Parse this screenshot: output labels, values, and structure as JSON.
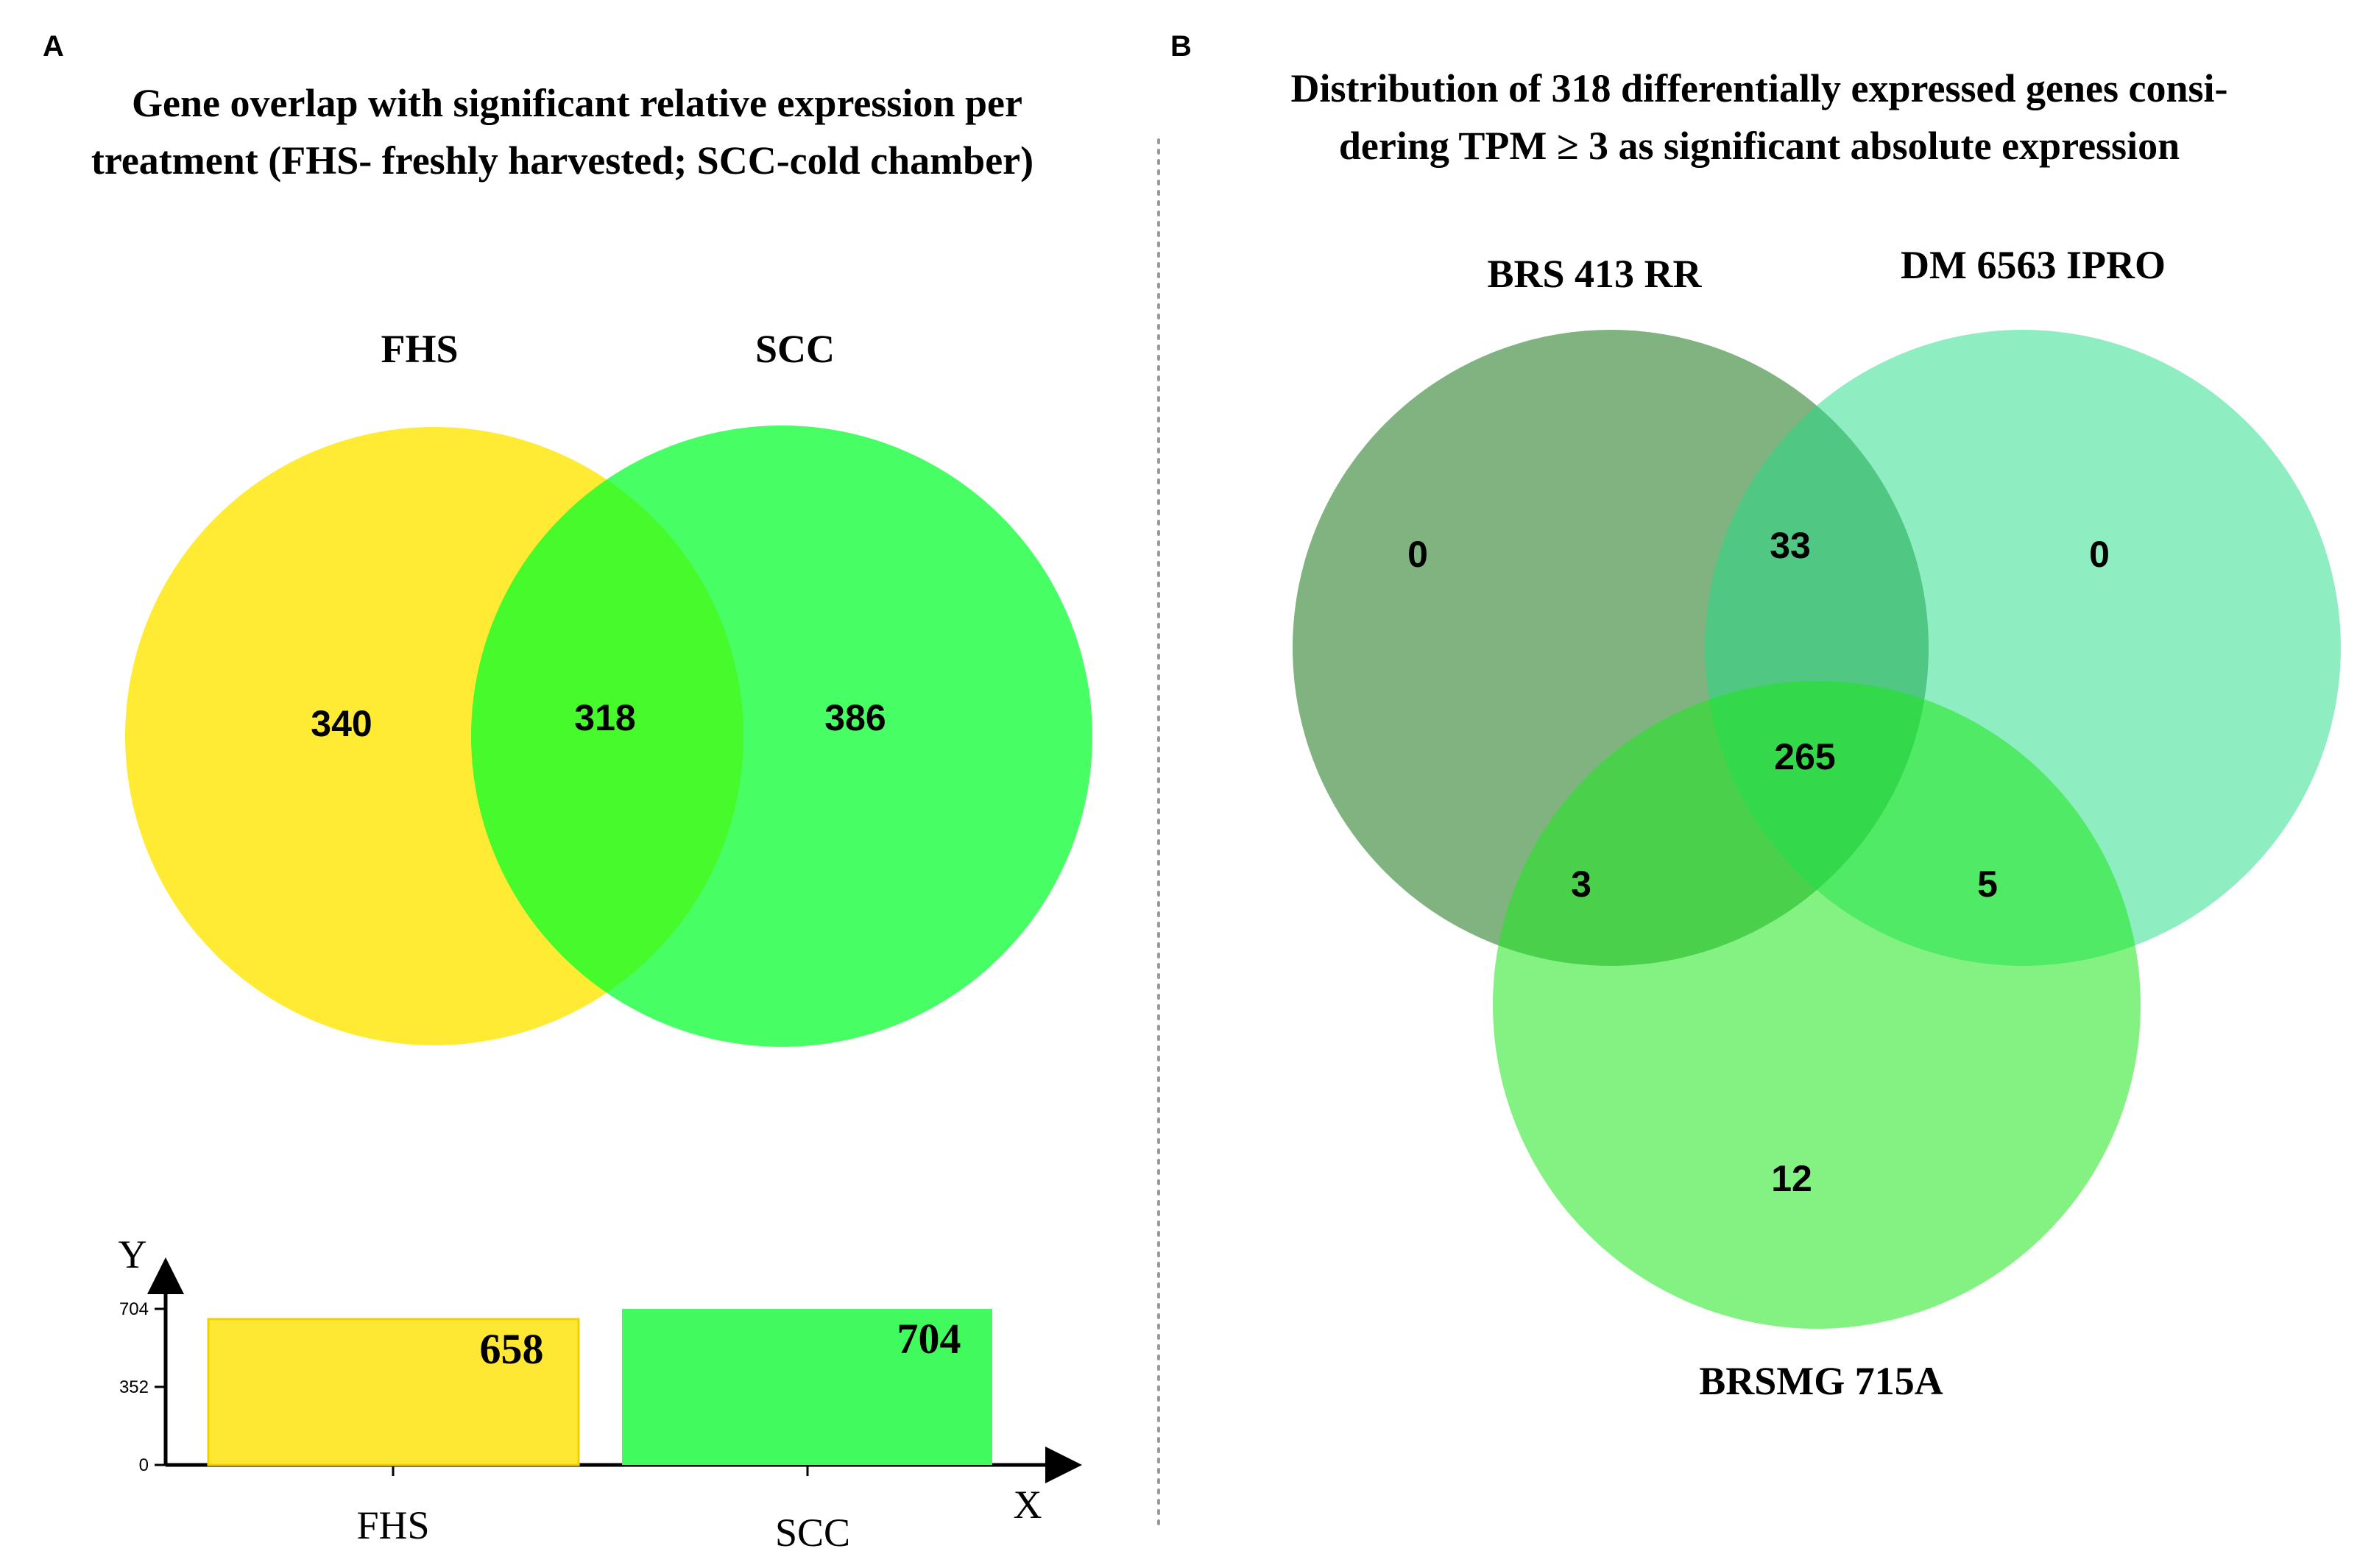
{
  "panel_a": {
    "letter": "A",
    "title_line1": "Gene overlap with significant relative expression per",
    "title_line2": "treatment (FHS- freshly harvested; SCC-cold chamber)",
    "venn": {
      "sets": [
        {
          "name": "FHS",
          "color": "#FFE600"
        },
        {
          "name": "SCC",
          "color": "#00FF2A"
        }
      ],
      "regions": {
        "fhs_only": "340",
        "both": "318",
        "scc_only": "386"
      }
    }
  },
  "panel_b": {
    "letter": "B",
    "title_line1": "Distribution of 318 differentially expressed genes consi-",
    "title_line2": "dering TPM ≥ 3 as significant absolute expression",
    "venn": {
      "sets": [
        {
          "name": "BRS 413 RR",
          "color": "#3E8A3E"
        },
        {
          "name": "DM 6563 IPRO",
          "color": "#1FDC86"
        },
        {
          "name": "BRSMG 715A",
          "color": "#1EE81E"
        }
      ],
      "regions": {
        "a_only": "0",
        "ab": "33",
        "b_only": "0",
        "abc": "265",
        "ac": "3",
        "bc": "5",
        "c_only": "12"
      }
    }
  },
  "chart_data": {
    "type": "bar",
    "categories": [
      "FHS",
      "SCC"
    ],
    "values": [
      658,
      704
    ],
    "value_labels": [
      "658",
      "704"
    ],
    "colors": [
      "#FFE833",
      "#41FA5E"
    ],
    "xlabel": "X",
    "ylabel": "Y",
    "yticks": [
      "704",
      "352",
      "0"
    ],
    "ylim": [
      0,
      704
    ],
    "grid": false
  }
}
